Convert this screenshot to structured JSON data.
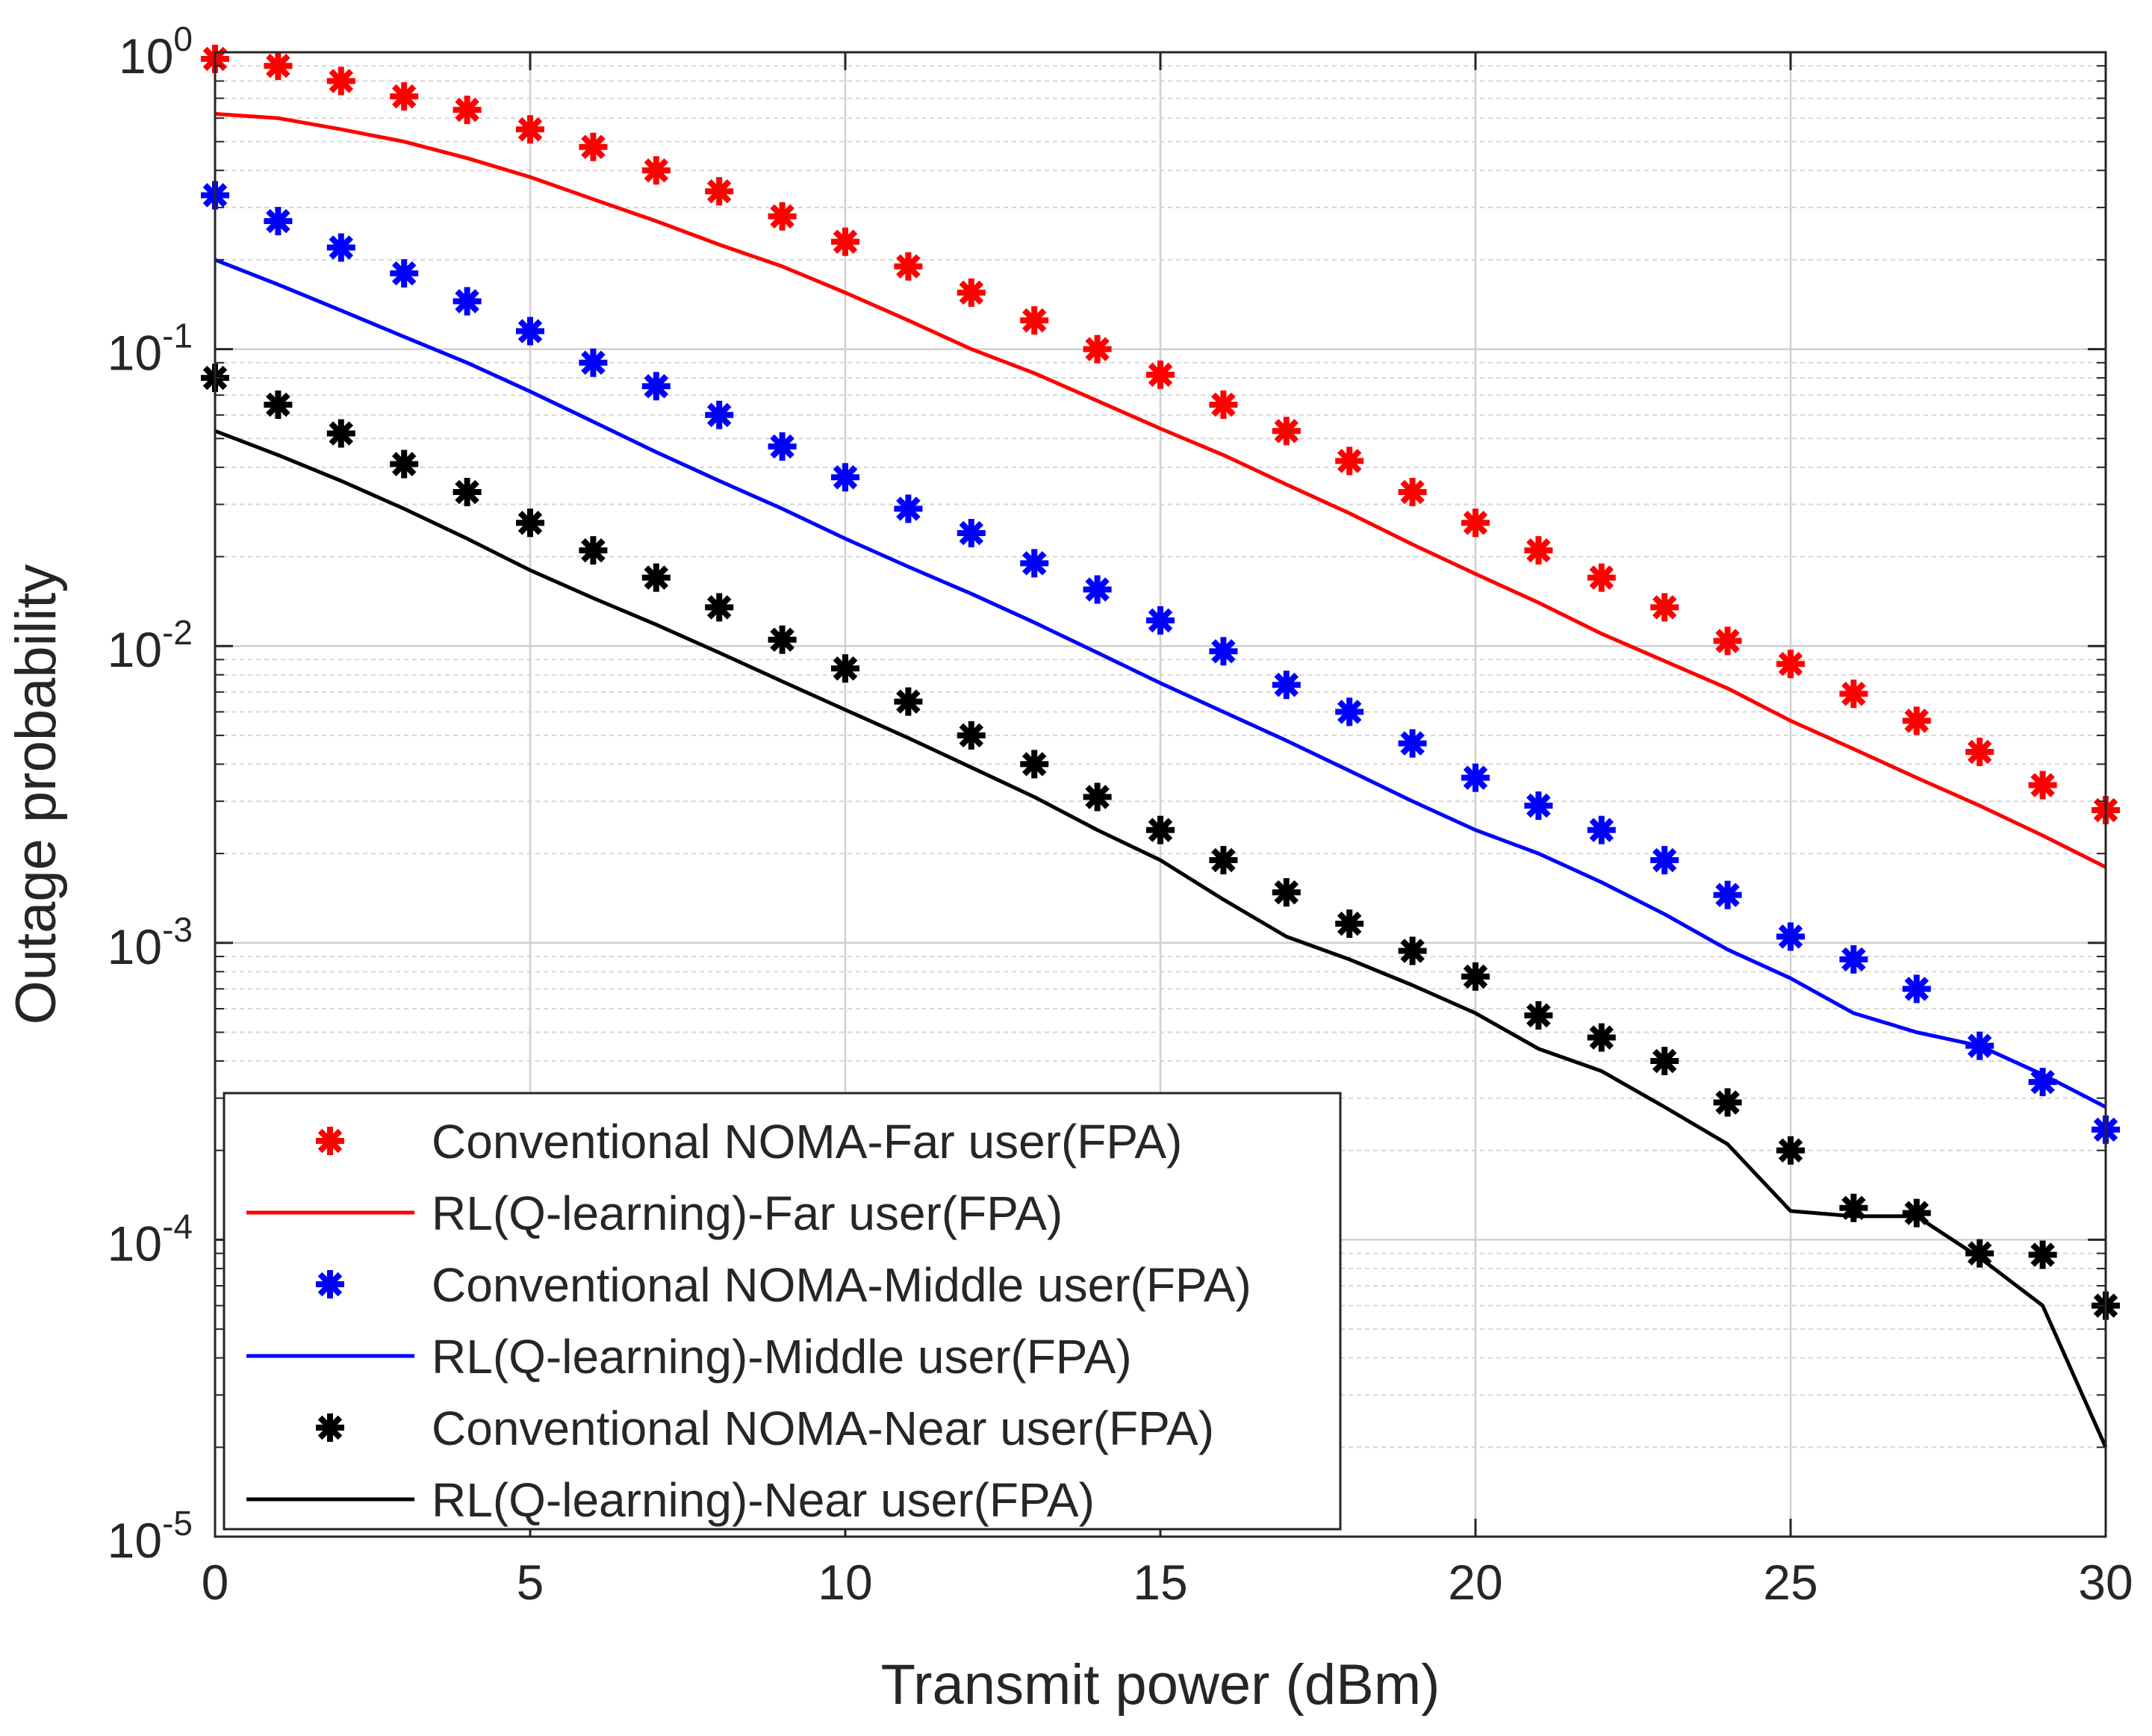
{
  "chart_data": {
    "type": "line",
    "xlabel": "Transmit power (dBm)",
    "ylabel": "Outage probability",
    "xlim": [
      0,
      30
    ],
    "ylim": [
      1e-05,
      1
    ],
    "yscale": "log",
    "grid": true,
    "legend_placement": "bottom-left",
    "x_ticks": [
      0,
      5,
      10,
      15,
      20,
      25,
      30
    ],
    "x_tick_labels": [
      "0",
      "5",
      "10",
      "15",
      "20",
      "25",
      "30"
    ],
    "y_ticks": [
      {
        "base": "10",
        "exp": "-5"
      },
      {
        "base": "10",
        "exp": "-4"
      },
      {
        "base": "10",
        "exp": "-3"
      },
      {
        "base": "10",
        "exp": "-2"
      },
      {
        "base": "10",
        "exp": "-1"
      },
      {
        "base": "10",
        "exp": "0"
      }
    ],
    "series": [
      {
        "name": "Conventional NOMA-Far user(FPA)",
        "style": "marker",
        "color": "#ff0000",
        "x": [
          0,
          1,
          2,
          3,
          4,
          5,
          6,
          7,
          8,
          9,
          10,
          11,
          12,
          13,
          14,
          15,
          16,
          17,
          18,
          19,
          20,
          21,
          22,
          23,
          24,
          25,
          26,
          27,
          28,
          29,
          30
        ],
        "values": [
          0.95,
          0.9,
          0.8,
          0.71,
          0.64,
          0.55,
          0.48,
          0.4,
          0.34,
          0.28,
          0.23,
          0.19,
          0.155,
          0.125,
          0.1,
          0.082,
          0.065,
          0.053,
          0.042,
          0.033,
          0.026,
          0.021,
          0.017,
          0.0135,
          0.0104,
          0.0087,
          0.0069,
          0.0056,
          0.0044,
          0.0034,
          0.0028
        ]
      },
      {
        "name": "RL(Q-learning)-Far user(FPA)",
        "style": "line",
        "color": "#ff0000",
        "x": [
          0,
          1,
          2,
          3,
          4,
          5,
          6,
          7,
          8,
          9,
          10,
          11,
          12,
          13,
          14,
          15,
          16,
          17,
          18,
          19,
          20,
          21,
          22,
          23,
          24,
          25,
          26,
          27,
          28,
          29,
          30
        ],
        "values": [
          0.62,
          0.6,
          0.55,
          0.5,
          0.44,
          0.38,
          0.32,
          0.27,
          0.225,
          0.19,
          0.155,
          0.125,
          0.1,
          0.083,
          0.067,
          0.054,
          0.044,
          0.035,
          0.028,
          0.022,
          0.0175,
          0.014,
          0.011,
          0.0089,
          0.0072,
          0.0056,
          0.0045,
          0.0036,
          0.0029,
          0.0023,
          0.0018
        ]
      },
      {
        "name": "Conventional NOMA-Middle user(FPA)",
        "style": "marker",
        "color": "#0000ff",
        "x": [
          0,
          1,
          2,
          3,
          4,
          5,
          6,
          7,
          8,
          9,
          10,
          11,
          12,
          13,
          14,
          15,
          16,
          17,
          18,
          19,
          20,
          21,
          22,
          23,
          24,
          25,
          26,
          27,
          28,
          29,
          30
        ],
        "values": [
          0.33,
          0.27,
          0.22,
          0.18,
          0.145,
          0.115,
          0.09,
          0.075,
          0.06,
          0.047,
          0.037,
          0.029,
          0.024,
          0.019,
          0.0155,
          0.0122,
          0.0096,
          0.0074,
          0.006,
          0.0047,
          0.0036,
          0.0029,
          0.0024,
          0.0019,
          0.00145,
          0.00105,
          0.00088,
          0.0007,
          0.00045,
          0.00034,
          0.000235
        ]
      },
      {
        "name": "RL(Q-learning)-Middle user(FPA)",
        "style": "line",
        "color": "#0000ff",
        "x": [
          0,
          1,
          2,
          3,
          4,
          5,
          6,
          7,
          8,
          9,
          10,
          11,
          12,
          13,
          14,
          15,
          16,
          17,
          18,
          19,
          20,
          21,
          22,
          23,
          24,
          25,
          26,
          27,
          28,
          29,
          30
        ],
        "values": [
          0.2,
          0.165,
          0.135,
          0.11,
          0.09,
          0.072,
          0.057,
          0.045,
          0.036,
          0.029,
          0.023,
          0.0185,
          0.015,
          0.012,
          0.0095,
          0.0075,
          0.006,
          0.0048,
          0.0038,
          0.003,
          0.0024,
          0.002,
          0.0016,
          0.00125,
          0.00095,
          0.00076,
          0.00058,
          0.0005,
          0.00045,
          0.00036,
          0.00028
        ]
      },
      {
        "name": "Conventional NOMA-Near user(FPA)",
        "style": "marker",
        "color": "#000000",
        "x": [
          0,
          1,
          2,
          3,
          4,
          5,
          6,
          7,
          8,
          9,
          10,
          11,
          12,
          13,
          14,
          15,
          16,
          17,
          18,
          19,
          20,
          21,
          22,
          23,
          24,
          25,
          26,
          27,
          28,
          29,
          30
        ],
        "values": [
          0.08,
          0.065,
          0.052,
          0.041,
          0.033,
          0.026,
          0.021,
          0.017,
          0.0135,
          0.0105,
          0.0084,
          0.0065,
          0.005,
          0.004,
          0.0031,
          0.0024,
          0.0019,
          0.00148,
          0.00116,
          0.00094,
          0.00077,
          0.00057,
          0.00048,
          0.0004,
          0.00029,
          0.0002,
          0.000128,
          0.000123,
          9e-05,
          8.9e-05,
          6e-05
        ]
      },
      {
        "name": "RL(Q-learning)-Near user(FPA)",
        "style": "line",
        "color": "#000000",
        "x": [
          0,
          1,
          2,
          3,
          4,
          5,
          6,
          7,
          8,
          9,
          10,
          11,
          12,
          13,
          14,
          15,
          16,
          17,
          18,
          19,
          20,
          21,
          22,
          23,
          24,
          25,
          26,
          27,
          28,
          29,
          30
        ],
        "values": [
          0.053,
          0.044,
          0.036,
          0.029,
          0.023,
          0.018,
          0.0145,
          0.0118,
          0.0095,
          0.0076,
          0.0061,
          0.0049,
          0.0039,
          0.0031,
          0.0024,
          0.0019,
          0.0014,
          0.00105,
          0.00088,
          0.00072,
          0.00058,
          0.00044,
          0.00037,
          0.00028,
          0.00021,
          0.000125,
          0.00012,
          0.00012,
          8.7e-05,
          6e-05,
          2e-05
        ]
      }
    ]
  }
}
